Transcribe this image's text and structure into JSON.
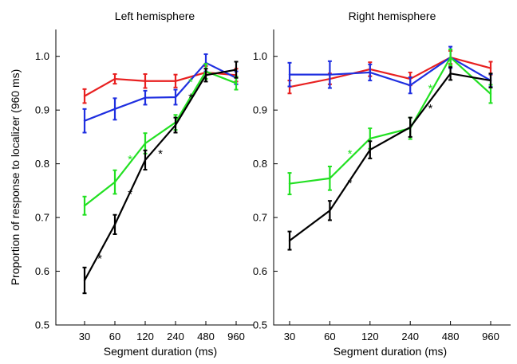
{
  "chart_data": [
    {
      "type": "line",
      "title": "Left hemisphere",
      "xlabel": "Segment duration (ms)",
      "ylabel": "Proportion of response to localizer (960 ms)",
      "x": [
        "30",
        "60",
        "120",
        "240",
        "480",
        "960"
      ],
      "ylim": [
        0.5,
        1.05
      ],
      "yticks": [
        "0.5",
        "0.6",
        "0.7",
        "0.8",
        "0.9",
        "1.0"
      ],
      "grid": false,
      "series": [
        {
          "color": "#e82020",
          "values": [
            0.926,
            0.958,
            0.954,
            0.954,
            0.97,
            0.965
          ],
          "errors": [
            0.013,
            0.009,
            0.013,
            0.012,
            0.012,
            0.012
          ]
        },
        {
          "color": "#1f2fe0",
          "values": [
            0.88,
            0.902,
            0.923,
            0.924,
            0.988,
            0.96
          ],
          "errors": [
            0.022,
            0.02,
            0.013,
            0.014,
            0.016,
            0.012
          ]
        },
        {
          "color": "#22e022",
          "values": [
            0.722,
            0.766,
            0.838,
            0.877,
            0.972,
            0.95
          ],
          "errors": [
            0.017,
            0.022,
            0.019,
            0.014,
            0.014,
            0.012
          ]
        },
        {
          "color": "#000000",
          "values": [
            0.583,
            0.687,
            0.807,
            0.872,
            0.965,
            0.975
          ],
          "errors": [
            0.024,
            0.018,
            0.018,
            0.014,
            0.012,
            0.015
          ]
        }
      ],
      "annotations": [
        {
          "text": "*",
          "color": "#000000",
          "between": [
            0,
            1
          ],
          "y": 0.625
        },
        {
          "text": "*",
          "color": "#000000",
          "between": [
            1,
            2
          ],
          "y": 0.745
        },
        {
          "text": "*",
          "color": "#000000",
          "between": [
            2,
            3
          ],
          "y": 0.82
        },
        {
          "text": "*",
          "color": "#000000",
          "between": [
            3,
            4
          ],
          "y": 0.925
        },
        {
          "text": "*",
          "color": "#22e022",
          "between": [
            1,
            2
          ],
          "y": 0.81
        },
        {
          "text": "*",
          "color": "#22e022",
          "between": [
            3,
            4
          ],
          "y": 0.954
        }
      ]
    },
    {
      "type": "line",
      "title": "Right hemisphere",
      "xlabel": "Segment duration (ms)",
      "ylabel": "",
      "x": [
        "30",
        "60",
        "120",
        "240",
        "480",
        "960"
      ],
      "ylim": [
        0.5,
        1.05
      ],
      "yticks": [
        "0.5",
        "0.6",
        "0.7",
        "0.8",
        "0.9",
        "1.0"
      ],
      "grid": false,
      "series": [
        {
          "color": "#e82020",
          "values": [
            0.943,
            0.958,
            0.976,
            0.958,
            0.998,
            0.978
          ],
          "errors": [
            0.012,
            0.01,
            0.013,
            0.012,
            0.012,
            0.012
          ]
        },
        {
          "color": "#1f2fe0",
          "values": [
            0.966,
            0.966,
            0.97,
            0.946,
            0.998,
            0.955
          ],
          "errors": [
            0.022,
            0.025,
            0.015,
            0.015,
            0.02,
            0.012
          ]
        },
        {
          "color": "#22e022",
          "values": [
            0.763,
            0.773,
            0.847,
            0.866,
            0.998,
            0.93
          ],
          "errors": [
            0.02,
            0.022,
            0.019,
            0.02,
            0.015,
            0.017
          ]
        },
        {
          "color": "#000000",
          "values": [
            0.657,
            0.713,
            0.826,
            0.868,
            0.968,
            0.955
          ],
          "errors": [
            0.017,
            0.018,
            0.016,
            0.018,
            0.012,
            0.013
          ]
        }
      ],
      "annotations": [
        {
          "text": "*",
          "color": "#000000",
          "between": [
            1,
            2
          ],
          "y": 0.765
        },
        {
          "text": "*",
          "color": "#000000",
          "between": [
            3,
            4
          ],
          "y": 0.905
        },
        {
          "text": "*",
          "color": "#22e022",
          "between": [
            1,
            2
          ],
          "y": 0.82
        },
        {
          "text": "*",
          "color": "#22e022",
          "between": [
            3,
            4
          ],
          "y": 0.942
        }
      ]
    }
  ]
}
